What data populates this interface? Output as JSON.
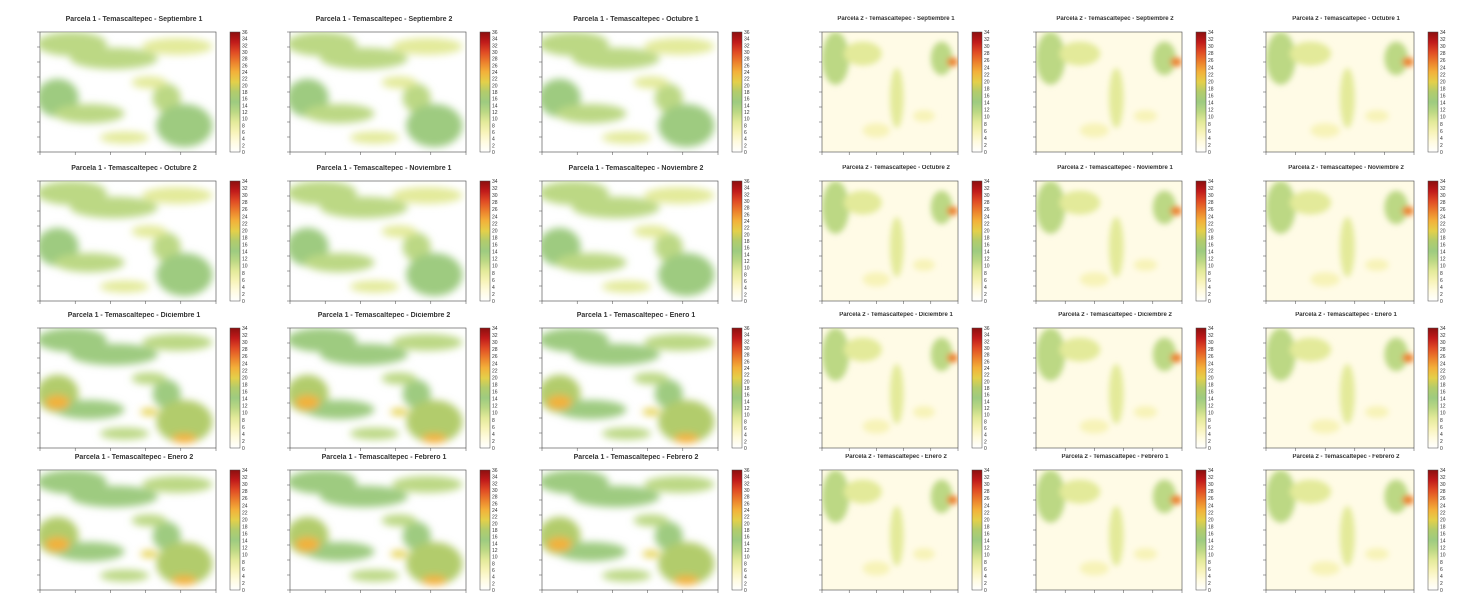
{
  "colors": {
    "ramp": [
      "#ffffff",
      "#fffbe0",
      "#f7f3b8",
      "#e3ea9a",
      "#bcd884",
      "#9ecb80",
      "#b2cc6c",
      "#e4d04a",
      "#f3b13a",
      "#ec7f2c",
      "#e04a24",
      "#c01a1a",
      "#8c0f0f"
    ]
  },
  "chart_data": [
    {
      "type": "heatmap",
      "title": "Parcela 1 - Temascaltepec - Septiembre 1",
      "colorbar_ticks": [
        "0",
        "2",
        "4",
        "6",
        "8",
        "10",
        "12",
        "14",
        "16",
        "18",
        "20",
        "22",
        "24",
        "26",
        "28",
        "30",
        "32",
        "34",
        "36"
      ]
    },
    {
      "type": "heatmap",
      "title": "Parcela 1 - Temascaltepec - Septiembre 2",
      "colorbar_ticks": [
        "0",
        "2",
        "4",
        "6",
        "8",
        "10",
        "12",
        "14",
        "16",
        "18",
        "20",
        "22",
        "24",
        "26",
        "28",
        "30",
        "32",
        "34",
        "36"
      ]
    },
    {
      "type": "heatmap",
      "title": "Parcela 1 - Temascaltepec - Octubre 1",
      "colorbar_ticks": [
        "0",
        "2",
        "4",
        "6",
        "8",
        "10",
        "12",
        "14",
        "16",
        "18",
        "20",
        "22",
        "24",
        "26",
        "28",
        "30",
        "32",
        "34",
        "36"
      ]
    },
    {
      "type": "heatmap",
      "title": "Parcela 1 - Temascaltepec - Octubre 2",
      "colorbar_ticks": [
        "0",
        "2",
        "4",
        "6",
        "8",
        "10",
        "12",
        "14",
        "16",
        "18",
        "20",
        "22",
        "24",
        "26",
        "28",
        "30",
        "32",
        "34"
      ]
    },
    {
      "type": "heatmap",
      "title": "Parcela 1 - Temascaltepec - Noviembre 1",
      "colorbar_ticks": [
        "0",
        "2",
        "4",
        "6",
        "8",
        "10",
        "12",
        "14",
        "16",
        "18",
        "20",
        "22",
        "24",
        "26",
        "28",
        "30",
        "32",
        "34"
      ]
    },
    {
      "type": "heatmap",
      "title": "Parcela 1 - Temascaltepec - Noviembre 2",
      "colorbar_ticks": [
        "0",
        "2",
        "4",
        "6",
        "8",
        "10",
        "12",
        "14",
        "16",
        "18",
        "20",
        "22",
        "24",
        "26",
        "28",
        "30",
        "32",
        "34",
        "36"
      ]
    },
    {
      "type": "heatmap",
      "title": "Parcela 1 - Temascaltepec - Diciembre 1",
      "colorbar_ticks": [
        "0",
        "2",
        "4",
        "6",
        "8",
        "10",
        "12",
        "14",
        "16",
        "18",
        "20",
        "22",
        "24",
        "26",
        "28",
        "30",
        "32",
        "34"
      ]
    },
    {
      "type": "heatmap",
      "title": "Parcela 1 - Temascaltepec - Diciembre 2",
      "colorbar_ticks": [
        "0",
        "2",
        "4",
        "6",
        "8",
        "10",
        "12",
        "14",
        "16",
        "18",
        "20",
        "22",
        "24",
        "26",
        "28",
        "30",
        "32",
        "34"
      ]
    },
    {
      "type": "heatmap",
      "title": "Parcela 1 - Temascaltepec - Enero 1",
      "colorbar_ticks": [
        "0",
        "2",
        "4",
        "6",
        "8",
        "10",
        "12",
        "14",
        "16",
        "18",
        "20",
        "22",
        "24",
        "26",
        "28",
        "30",
        "32",
        "34",
        "36"
      ]
    },
    {
      "type": "heatmap",
      "title": "Parcela 1 - Temascaltepec - Enero 2",
      "colorbar_ticks": [
        "0",
        "2",
        "4",
        "6",
        "8",
        "10",
        "12",
        "14",
        "16",
        "18",
        "20",
        "22",
        "24",
        "26",
        "28",
        "30",
        "32",
        "34"
      ]
    },
    {
      "type": "heatmap",
      "title": "Parcela 1 - Temascaltepec - Febrero 1",
      "colorbar_ticks": [
        "0",
        "2",
        "4",
        "6",
        "8",
        "10",
        "12",
        "14",
        "16",
        "18",
        "20",
        "22",
        "24",
        "26",
        "28",
        "30",
        "32",
        "34",
        "36"
      ]
    },
    {
      "type": "heatmap",
      "title": "Parcela 1 - Temascaltepec - Febrero 2",
      "colorbar_ticks": [
        "0",
        "2",
        "4",
        "6",
        "8",
        "10",
        "12",
        "14",
        "16",
        "18",
        "20",
        "22",
        "24",
        "26",
        "28",
        "30",
        "32",
        "34",
        "36"
      ]
    },
    {
      "type": "heatmap",
      "title": "Parcela 2 - Temascaltepec - Septiembre 1",
      "colorbar_ticks": [
        "0",
        "2",
        "4",
        "6",
        "8",
        "10",
        "12",
        "14",
        "16",
        "18",
        "20",
        "22",
        "24",
        "26",
        "28",
        "30",
        "32",
        "34"
      ]
    },
    {
      "type": "heatmap",
      "title": "Parcela 2 - Temascaltepec - Septiembre 2",
      "colorbar_ticks": [
        "0",
        "2",
        "4",
        "6",
        "8",
        "10",
        "12",
        "14",
        "16",
        "18",
        "20",
        "22",
        "24",
        "26",
        "28",
        "30",
        "32",
        "34"
      ]
    },
    {
      "type": "heatmap",
      "title": "Parcela 2 - Temascaltepec - Octubre 1",
      "colorbar_ticks": [
        "0",
        "2",
        "4",
        "6",
        "8",
        "10",
        "12",
        "14",
        "16",
        "18",
        "20",
        "22",
        "24",
        "26",
        "28",
        "30",
        "32",
        "34"
      ]
    },
    {
      "type": "heatmap",
      "title": "Parcela 2 - Temascaltepec - Octubre 2",
      "colorbar_ticks": [
        "0",
        "2",
        "4",
        "6",
        "8",
        "10",
        "12",
        "14",
        "16",
        "18",
        "20",
        "22",
        "24",
        "26",
        "28",
        "30",
        "32",
        "34"
      ]
    },
    {
      "type": "heatmap",
      "title": "Parcela 2 - Temascaltepec - Noviembre 1",
      "colorbar_ticks": [
        "0",
        "2",
        "4",
        "6",
        "8",
        "10",
        "12",
        "14",
        "16",
        "18",
        "20",
        "22",
        "24",
        "26",
        "28",
        "30",
        "32",
        "34"
      ]
    },
    {
      "type": "heatmap",
      "title": "Parcela 2 - Temascaltepec - Noviembre 2",
      "colorbar_ticks": [
        "0",
        "2",
        "4",
        "6",
        "8",
        "10",
        "12",
        "14",
        "16",
        "18",
        "20",
        "22",
        "24",
        "26",
        "28",
        "30",
        "32",
        "34"
      ]
    },
    {
      "type": "heatmap",
      "title": "Parcela 2 - Temascaltepec - Diciembre 1",
      "colorbar_ticks": [
        "0",
        "2",
        "4",
        "6",
        "8",
        "10",
        "12",
        "14",
        "16",
        "18",
        "20",
        "22",
        "24",
        "26",
        "28",
        "30",
        "32",
        "34",
        "36"
      ]
    },
    {
      "type": "heatmap",
      "title": "Parcela 2 - Temascaltepec - Diciembre 2",
      "colorbar_ticks": [
        "0",
        "2",
        "4",
        "6",
        "8",
        "10",
        "12",
        "14",
        "16",
        "18",
        "20",
        "22",
        "24",
        "26",
        "28",
        "30",
        "32",
        "34"
      ]
    },
    {
      "type": "heatmap",
      "title": "Parcela 2 - Temascaltepec - Enero 1",
      "colorbar_ticks": [
        "0",
        "2",
        "4",
        "6",
        "8",
        "10",
        "12",
        "14",
        "16",
        "18",
        "20",
        "22",
        "24",
        "26",
        "28",
        "30",
        "32",
        "34"
      ]
    },
    {
      "type": "heatmap",
      "title": "Parcela 2 - Temascaltepec - Enero 2",
      "colorbar_ticks": [
        "0",
        "2",
        "4",
        "6",
        "8",
        "10",
        "12",
        "14",
        "16",
        "18",
        "20",
        "22",
        "24",
        "26",
        "28",
        "30",
        "32",
        "34"
      ]
    },
    {
      "type": "heatmap",
      "title": "Parcela 2 - Temascaltepec - Febrero 1",
      "colorbar_ticks": [
        "0",
        "2",
        "4",
        "6",
        "8",
        "10",
        "12",
        "14",
        "16",
        "18",
        "20",
        "22",
        "24",
        "26",
        "28",
        "30",
        "32",
        "34"
      ]
    },
    {
      "type": "heatmap",
      "title": "Parcela 2 - Temascaltepec - Febrero 2",
      "colorbar_ticks": [
        "0",
        "2",
        "4",
        "6",
        "8",
        "10",
        "12",
        "14",
        "16",
        "18",
        "20",
        "22",
        "24",
        "26",
        "28",
        "30",
        "32",
        "34"
      ]
    }
  ]
}
